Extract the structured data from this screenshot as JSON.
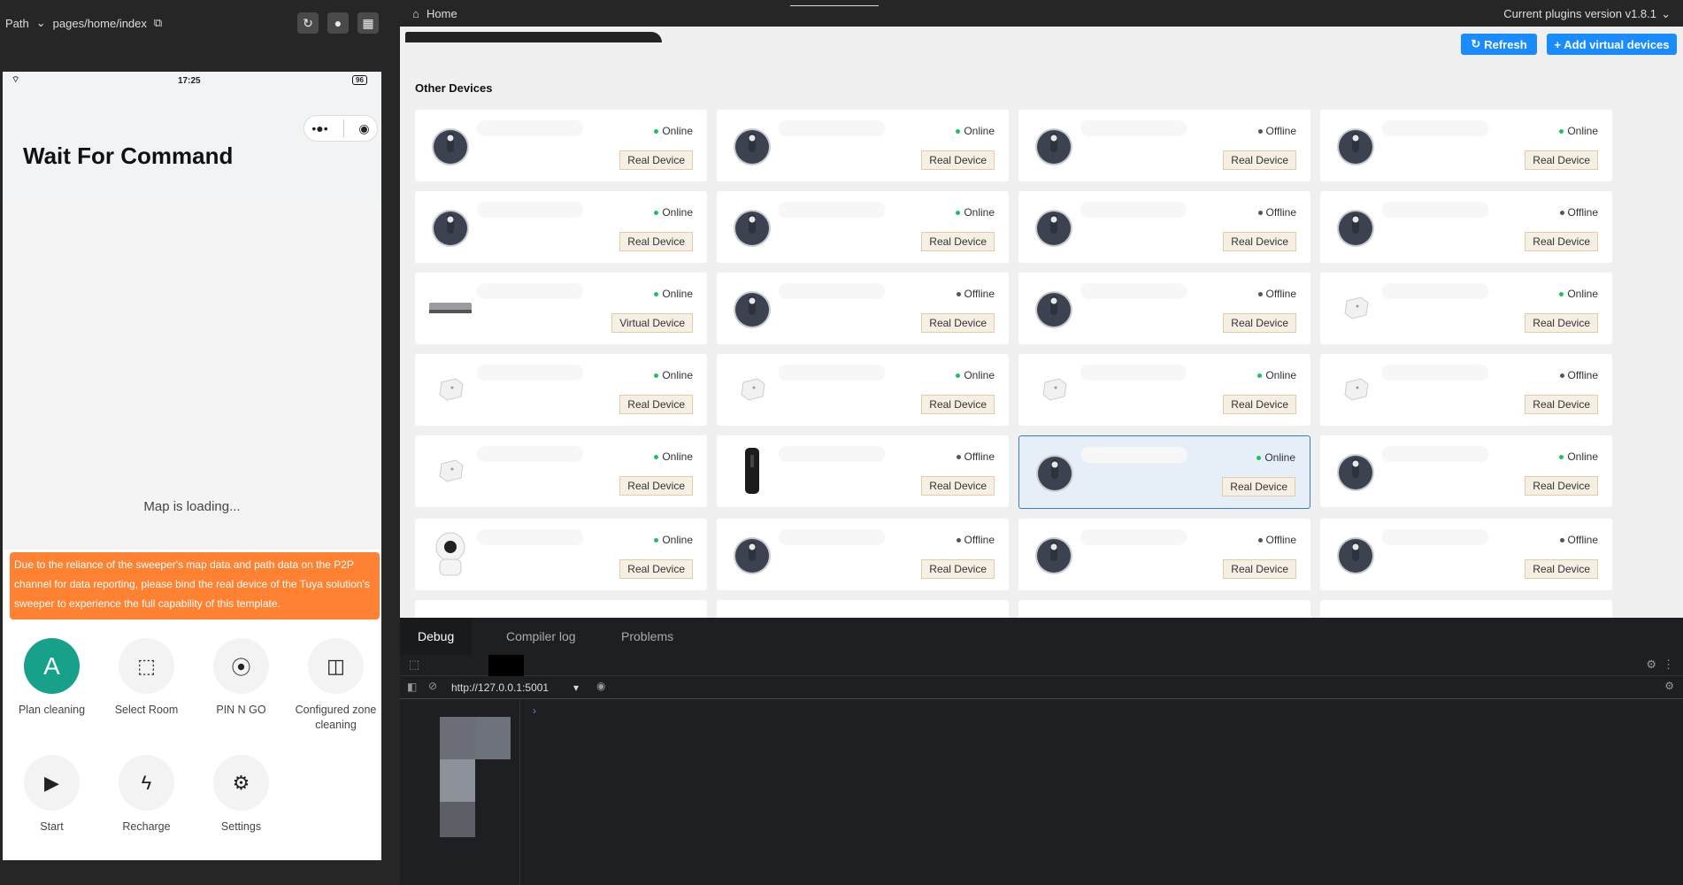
{
  "toolbar": {
    "path_label": "Path",
    "path_value": "pages/home/index"
  },
  "phone": {
    "time": "17:25",
    "battery": "96",
    "title": "Wait For Command",
    "map_status": "Map is loading...",
    "banner": "Due to the reliance of the sweeper's map data and path data on the P2P channel for data reporting, please bind the real device of the Tuya solution's sweeper to experience the full capability of this template.",
    "actions": [
      {
        "label": "Plan cleaning",
        "icon": "A"
      },
      {
        "label": "Select Room",
        "icon": "select-room-icon"
      },
      {
        "label": "PIN N GO",
        "icon": "pin-icon"
      },
      {
        "label": "Configured zone cleaning",
        "icon": "zone-icon"
      },
      {
        "label": "Start",
        "icon": "play-icon"
      },
      {
        "label": "Recharge",
        "icon": "bolt-icon"
      },
      {
        "label": "Settings",
        "icon": "gear-icon"
      }
    ],
    "accent": "#17a08a",
    "banner_color": "#ff8232"
  },
  "header": {
    "breadcrumb": "Home",
    "version": "Current plugins version v1.8.1"
  },
  "main": {
    "refresh": "Refresh",
    "add": "+ Add virtual devices",
    "section": "Other Devices"
  },
  "devices": [
    {
      "icon": "robot",
      "status": "Online",
      "tag": "Real Device"
    },
    {
      "icon": "robot",
      "status": "Online",
      "tag": "Real Device"
    },
    {
      "icon": "robot",
      "status": "Offline",
      "tag": "Real Device"
    },
    {
      "icon": "robot",
      "status": "Online",
      "tag": "Real Device"
    },
    {
      "icon": "robot",
      "status": "Online",
      "tag": "Real Device"
    },
    {
      "icon": "robot",
      "status": "Online",
      "tag": "Real Device"
    },
    {
      "icon": "robot",
      "status": "Offline",
      "tag": "Real Device"
    },
    {
      "icon": "robot",
      "status": "Offline",
      "tag": "Real Device"
    },
    {
      "icon": "ac",
      "status": "Online",
      "tag": "Virtual Device"
    },
    {
      "icon": "robot",
      "status": "Offline",
      "tag": "Real Device"
    },
    {
      "icon": "robot",
      "status": "Offline",
      "tag": "Real Device"
    },
    {
      "icon": "plug",
      "status": "Online",
      "tag": "Real Device"
    },
    {
      "icon": "plug",
      "status": "Online",
      "tag": "Real Device"
    },
    {
      "icon": "plug",
      "status": "Online",
      "tag": "Real Device"
    },
    {
      "icon": "plug",
      "status": "Online",
      "tag": "Real Device"
    },
    {
      "icon": "plug",
      "status": "Offline",
      "tag": "Real Device"
    },
    {
      "icon": "plug",
      "status": "Online",
      "tag": "Real Device"
    },
    {
      "icon": "remote",
      "status": "Offline",
      "tag": "Real Device"
    },
    {
      "icon": "robot",
      "status": "Online",
      "tag": "Real Device",
      "selected": true
    },
    {
      "icon": "robot",
      "status": "Online",
      "tag": "Real Device"
    },
    {
      "icon": "camera",
      "status": "Online",
      "tag": "Real Device"
    },
    {
      "icon": "robot",
      "status": "Offline",
      "tag": "Real Device"
    },
    {
      "icon": "robot",
      "status": "Offline",
      "tag": "Real Device"
    },
    {
      "icon": "robot",
      "status": "Offline",
      "tag": "Real Device"
    }
  ],
  "status_colors": {
    "Online": "#1ec15f",
    "Offline": "#555555"
  },
  "debug": {
    "tabs": [
      "Debug",
      "Compiler log",
      "Problems"
    ],
    "url": "http://127.0.0.1:5001"
  }
}
